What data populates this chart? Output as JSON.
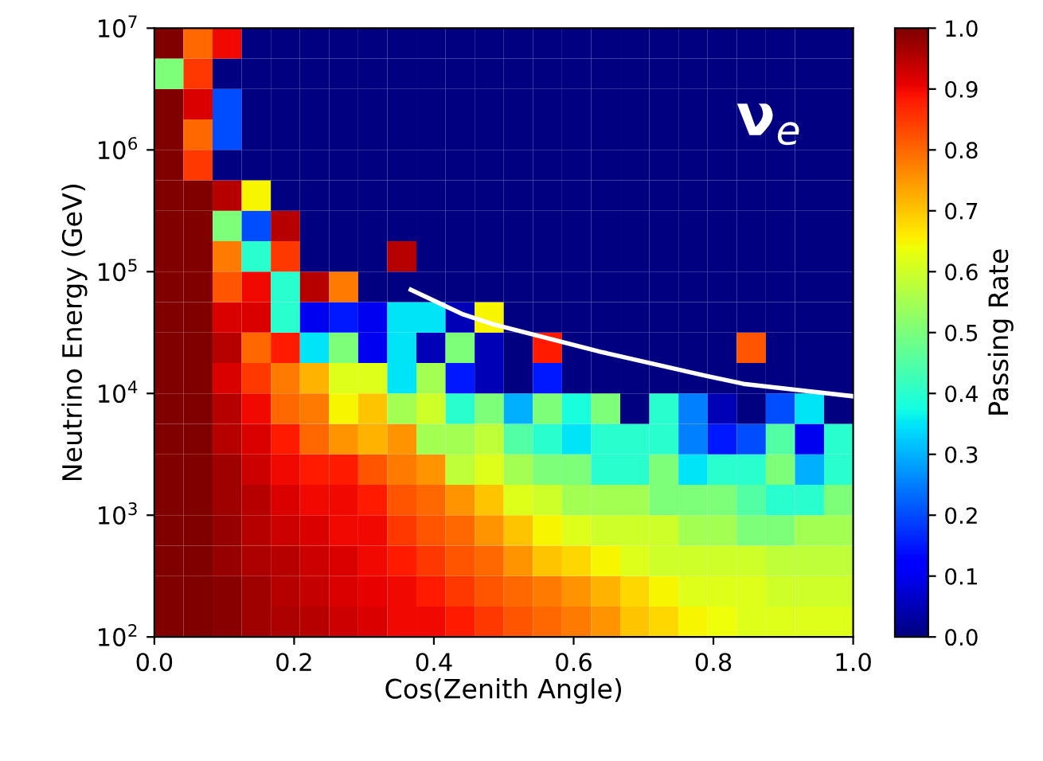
{
  "chart_data": {
    "type": "heatmap",
    "xlabel": "Cos(Zenith Angle)",
    "ylabel": "Neutrino Energy (GeV)",
    "clabel": "Passing Rate",
    "annotations": [
      "ν$_{e}$"
    ],
    "log": "y",
    "xlim": [
      0.0,
      1.0
    ],
    "xticks": [
      {
        "value": 0.0,
        "label": "0.0"
      },
      {
        "value": 0.2,
        "label": "0.2"
      },
      {
        "value": 0.4,
        "label": "0.4"
      },
      {
        "value": 0.6,
        "label": "0.6"
      },
      {
        "value": 0.8,
        "label": "0.8"
      },
      {
        "value": 1.0,
        "label": "1.0"
      }
    ],
    "ylim": [
      100,
      10000000
    ],
    "yticks": [
      {
        "value": 100,
        "label": "10$^{2}$"
      },
      {
        "value": 1000,
        "label": "10$^{3}$"
      },
      {
        "value": 10000,
        "label": "10$^{4}$"
      },
      {
        "value": 100000,
        "label": "10$^{5}$"
      },
      {
        "value": 1000000,
        "label": "10$^{6}$"
      },
      {
        "value": 10000000,
        "label": "10$^{7}$"
      }
    ],
    "clim": [
      0.0,
      1.0
    ],
    "cticks": [
      {
        "value": 0.0,
        "label": "0.0"
      },
      {
        "value": 0.1,
        "label": "0.1"
      },
      {
        "value": 0.2,
        "label": "0.2"
      },
      {
        "value": 0.3,
        "label": "0.3"
      },
      {
        "value": 0.4,
        "label": "0.4"
      },
      {
        "value": 0.5,
        "label": "0.5"
      },
      {
        "value": 0.6,
        "label": "0.6"
      },
      {
        "value": 0.7,
        "label": "0.7"
      },
      {
        "value": 0.8,
        "label": "0.8"
      },
      {
        "value": 0.9,
        "label": "0.9"
      },
      {
        "value": 1.0,
        "label": "1.0"
      }
    ],
    "grid": false,
    "cells": [
      [
        1.0,
        0.8,
        0.9,
        0,
        0,
        0,
        0,
        0,
        0,
        0,
        0,
        0,
        0,
        0,
        0,
        0,
        0,
        0,
        0,
        0,
        0,
        0,
        0,
        0
      ],
      [
        0.5,
        0.85,
        0,
        0,
        0,
        0,
        0,
        0,
        0,
        0,
        0,
        0,
        0,
        0,
        0,
        0,
        0,
        0,
        0,
        0,
        0,
        0,
        0,
        0
      ],
      [
        1,
        0.92,
        0.2,
        0,
        0,
        0,
        0,
        0,
        0,
        0,
        0,
        0,
        0,
        0,
        0,
        0,
        0,
        0,
        0,
        0,
        0,
        0,
        0,
        0
      ],
      [
        1,
        0.8,
        0.2,
        0,
        0,
        0,
        0,
        0,
        0,
        0,
        0,
        0,
        0,
        0,
        0,
        0,
        0,
        0,
        0,
        0,
        0,
        0,
        0,
        0
      ],
      [
        1,
        0.85,
        0,
        0,
        0,
        0,
        0,
        0,
        0,
        0,
        0,
        0,
        0,
        0,
        0,
        0,
        0,
        0,
        0,
        0,
        0,
        0,
        0,
        0
      ],
      [
        1,
        1,
        0.95,
        0.65,
        0,
        0,
        0,
        0,
        0,
        0,
        0,
        0,
        0,
        0,
        0,
        0,
        0,
        0,
        0,
        0,
        0,
        0,
        0,
        0
      ],
      [
        1,
        1,
        0.5,
        0.2,
        0.95,
        0,
        0,
        0,
        0,
        0,
        0,
        0,
        0,
        0,
        0,
        0,
        0,
        0,
        0,
        0,
        0,
        0,
        0,
        0
      ],
      [
        1,
        1,
        0.78,
        0.4,
        0.85,
        0,
        0,
        0,
        0.95,
        0,
        0,
        0,
        0,
        0,
        0,
        0,
        0,
        0,
        0,
        0,
        0,
        0,
        0,
        0
      ],
      [
        1,
        1,
        0.82,
        0.9,
        0.4,
        0.95,
        0.78,
        0,
        0,
        0,
        0,
        0,
        0,
        0,
        0,
        0,
        0,
        0,
        0,
        0,
        0,
        0,
        0,
        0
      ],
      [
        1,
        1,
        0.92,
        0.92,
        0.4,
        0.1,
        0.15,
        0.1,
        0.35,
        0.35,
        0.05,
        0.65,
        0,
        0,
        0,
        0,
        0,
        0,
        0,
        0,
        0,
        0,
        0,
        0
      ],
      [
        1,
        1,
        0.95,
        0.8,
        0.88,
        0.35,
        0.5,
        0.1,
        0.35,
        0.05,
        0.5,
        0.05,
        0,
        0.88,
        0,
        0,
        0,
        0,
        0,
        0,
        0.82,
        0,
        0,
        0
      ],
      [
        1,
        1,
        0.92,
        0.85,
        0.78,
        0.72,
        0.62,
        0.62,
        0.35,
        0.55,
        0.15,
        0.05,
        0,
        0.15,
        0,
        0,
        0,
        0,
        0,
        0,
        0,
        0,
        0,
        0
      ],
      [
        1,
        1,
        0.95,
        0.9,
        0.8,
        0.78,
        0.65,
        0.7,
        0.55,
        0.6,
        0.4,
        0.5,
        0.3,
        0.5,
        0.38,
        0.5,
        0,
        0.4,
        0.25,
        0.05,
        0,
        0.2,
        0.35,
        0
      ],
      [
        1,
        1,
        0.95,
        0.92,
        0.88,
        0.8,
        0.75,
        0.72,
        0.75,
        0.55,
        0.55,
        0.58,
        0.45,
        0.4,
        0.35,
        0.4,
        0.4,
        0.4,
        0.25,
        0.15,
        0.2,
        0.45,
        0.1,
        0.4
      ],
      [
        1,
        1,
        0.97,
        0.93,
        0.9,
        0.88,
        0.88,
        0.82,
        0.78,
        0.75,
        0.58,
        0.62,
        0.55,
        0.5,
        0.5,
        0.4,
        0.4,
        0.5,
        0.35,
        0.4,
        0.4,
        0.5,
        0.3,
        0.4
      ],
      [
        1,
        1,
        0.97,
        0.95,
        0.92,
        0.9,
        0.9,
        0.88,
        0.82,
        0.8,
        0.75,
        0.7,
        0.62,
        0.6,
        0.55,
        0.55,
        0.55,
        0.5,
        0.5,
        0.5,
        0.45,
        0.4,
        0.4,
        0.5
      ],
      [
        1,
        1,
        0.98,
        0.95,
        0.93,
        0.92,
        0.9,
        0.9,
        0.85,
        0.82,
        0.8,
        0.75,
        0.7,
        0.65,
        0.62,
        0.6,
        0.6,
        0.6,
        0.55,
        0.55,
        0.5,
        0.5,
        0.55,
        0.55
      ],
      [
        1,
        1,
        0.98,
        0.96,
        0.95,
        0.93,
        0.92,
        0.9,
        0.88,
        0.85,
        0.82,
        0.8,
        0.75,
        0.7,
        0.68,
        0.65,
        0.62,
        0.6,
        0.6,
        0.6,
        0.6,
        0.58,
        0.58,
        0.58
      ],
      [
        1,
        1,
        0.99,
        0.97,
        0.95,
        0.94,
        0.92,
        0.91,
        0.9,
        0.88,
        0.85,
        0.82,
        0.8,
        0.78,
        0.75,
        0.72,
        0.68,
        0.65,
        0.62,
        0.62,
        0.62,
        0.6,
        0.6,
        0.6
      ],
      [
        1,
        1,
        0.99,
        0.97,
        0.96,
        0.95,
        0.93,
        0.92,
        0.9,
        0.9,
        0.88,
        0.85,
        0.82,
        0.8,
        0.78,
        0.75,
        0.7,
        0.68,
        0.65,
        0.64,
        0.62,
        0.62,
        0.62,
        0.62
      ]
    ],
    "series": [
      {
        "type": "line",
        "color": "#ffffff",
        "x": [
          0.367,
          0.44,
          0.485,
          0.638,
          0.788,
          0.843,
          0.998
        ],
        "values": [
          71000,
          45000,
          37000,
          22000,
          14000,
          12000,
          9500
        ]
      }
    ]
  }
}
